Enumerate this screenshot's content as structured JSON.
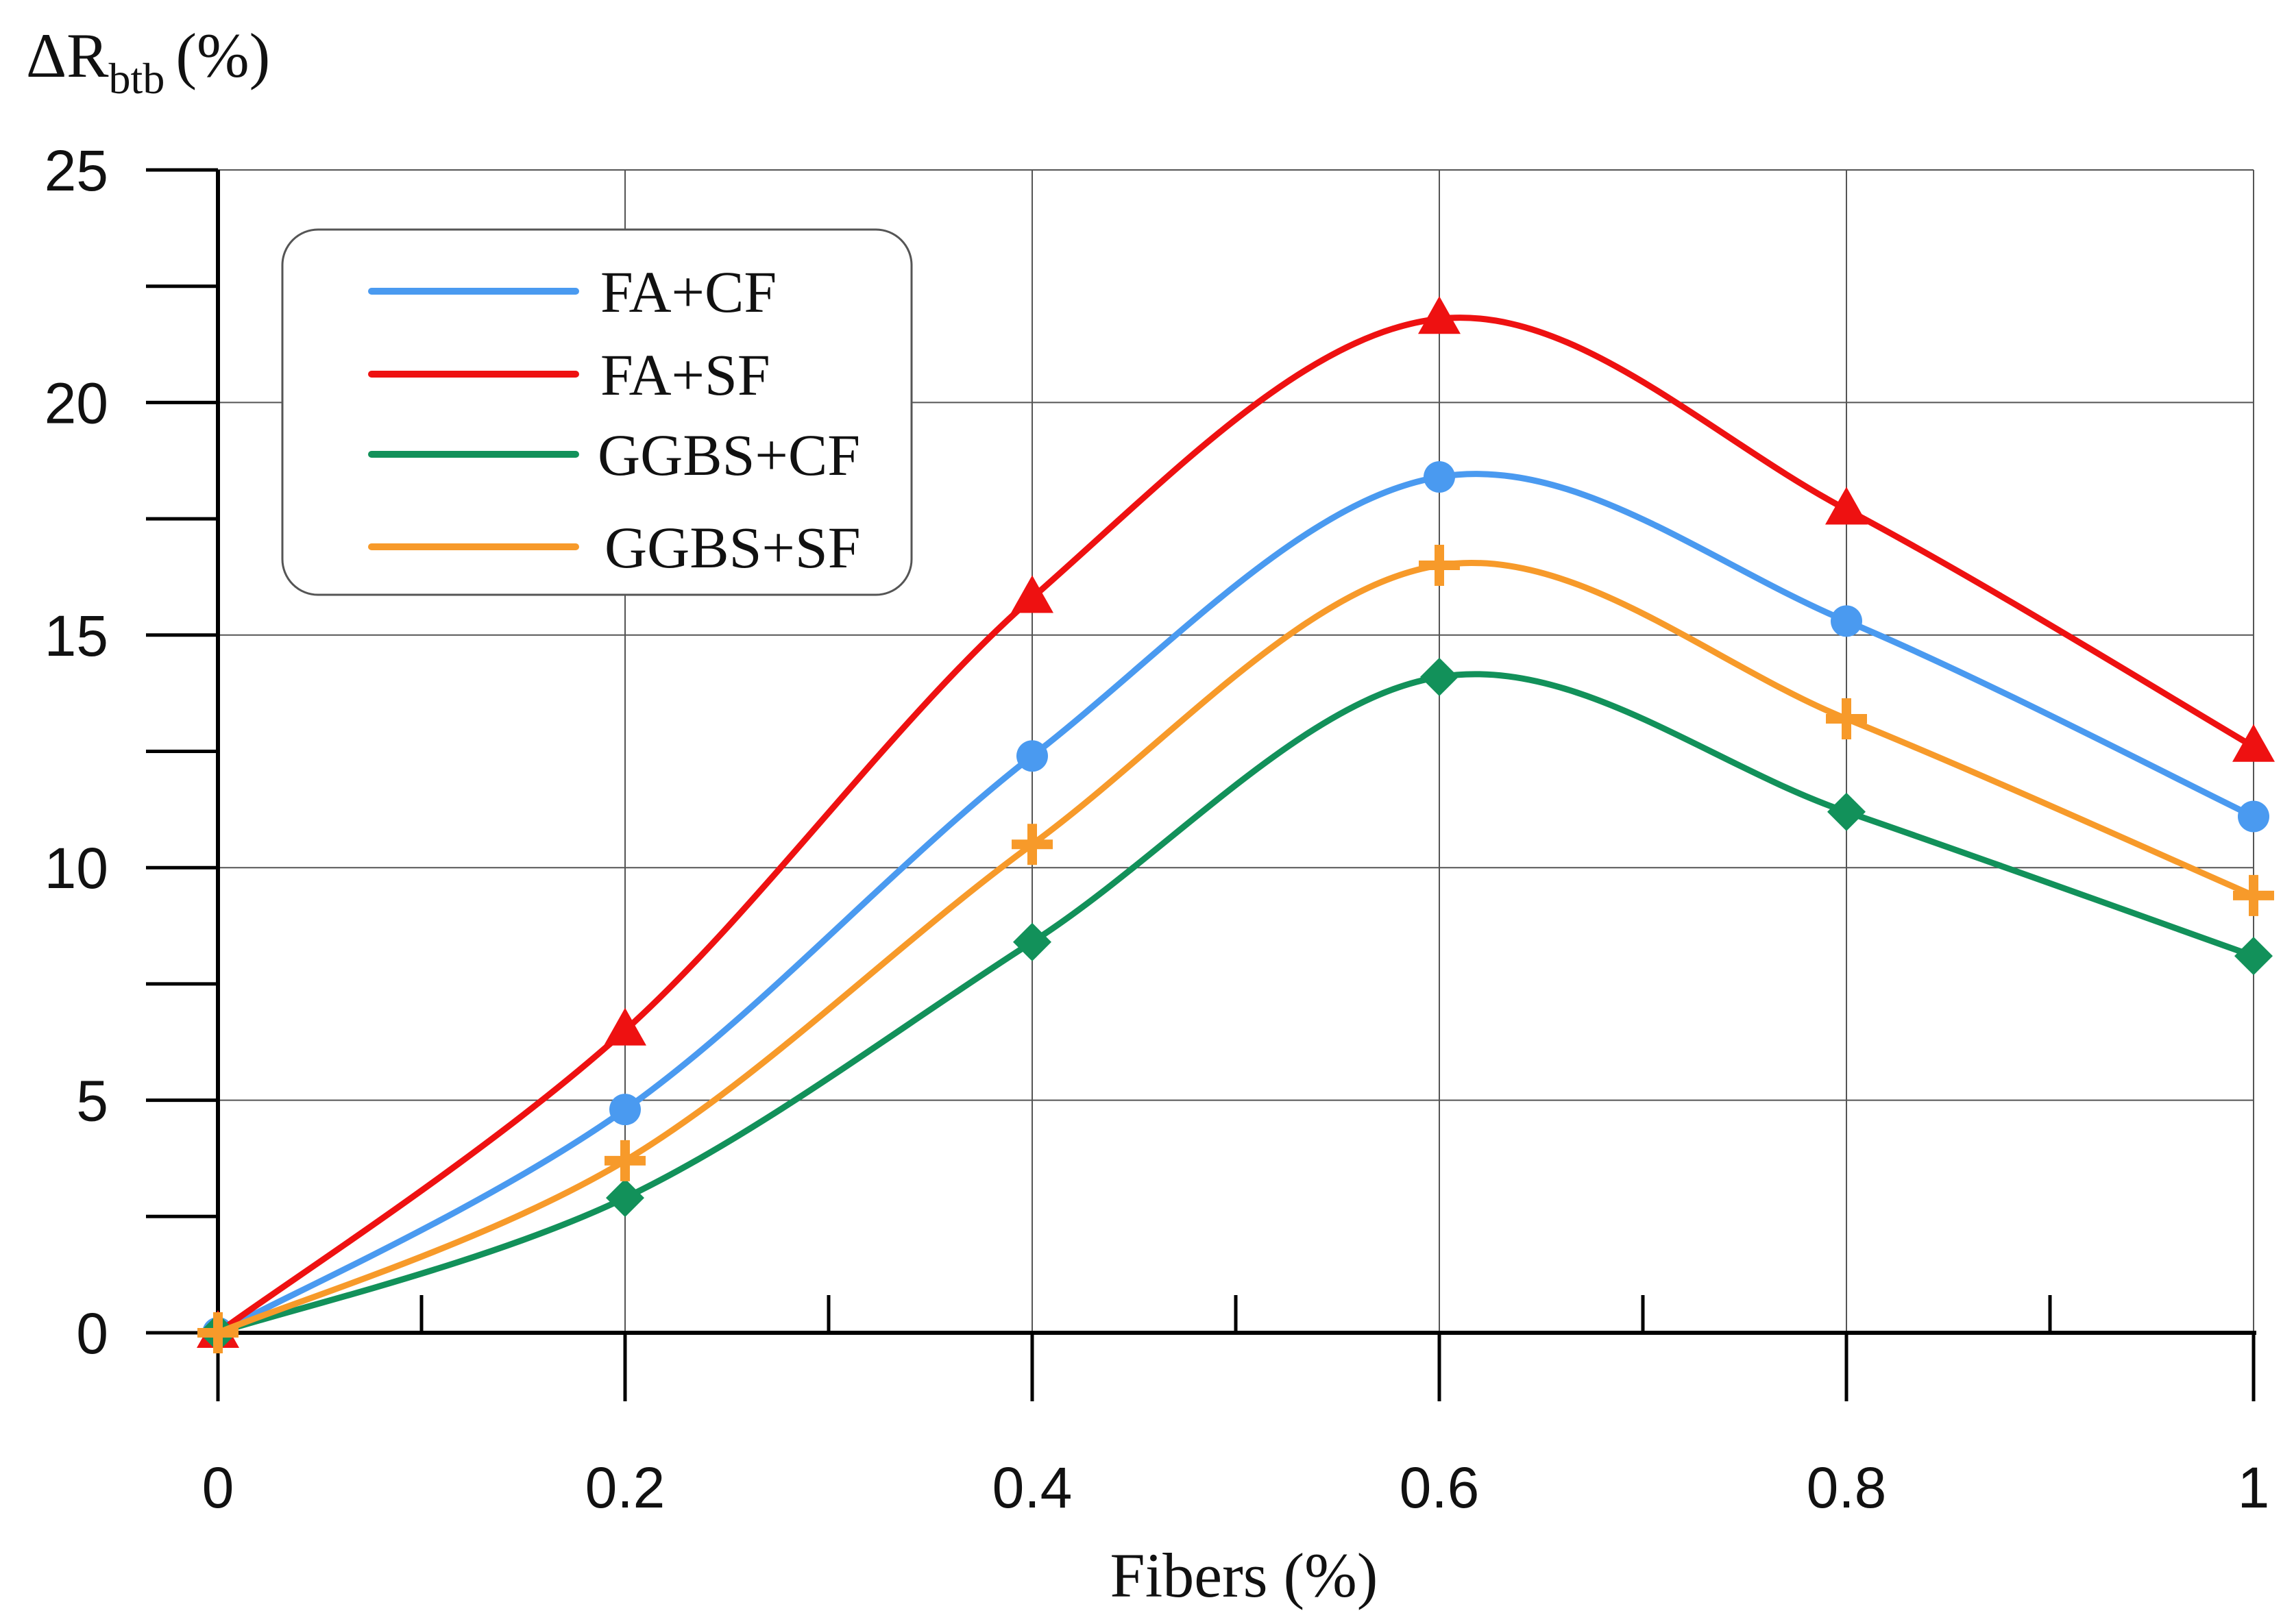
{
  "chart_data": {
    "type": "line",
    "title": "",
    "ylabel": {
      "symbol": "ΔR",
      "subscript": "btb",
      "unit": "(%)"
    },
    "xlabel": "Fibers (%)",
    "x": [
      0,
      0.2,
      0.4,
      0.6,
      0.8,
      1
    ],
    "x_tick_labels": [
      "0",
      "0.2",
      "0.4",
      "0.6",
      "0.8",
      "1"
    ],
    "y_tick_labels": [
      "0",
      "5",
      "10",
      "15",
      "20",
      "25"
    ],
    "xlim": [
      0,
      1
    ],
    "ylim": [
      0,
      25
    ],
    "x_major_step": 0.2,
    "x_minor_step": 0.1,
    "y_major_step": 5,
    "y_minor_step": 2.5,
    "grid": true,
    "legend_position": "top-left",
    "series": [
      {
        "name": "FA+CF",
        "color": "#4a9af0",
        "marker": "circle",
        "values": [
          0,
          4.8,
          12.4,
          18.4,
          15.3,
          11.1
        ]
      },
      {
        "name": "FA+SF",
        "color": "#ee1111",
        "marker": "triangle",
        "values": [
          0,
          6.5,
          15.8,
          21.8,
          17.7,
          12.6
        ]
      },
      {
        "name": "GGBS+CF",
        "color": "#12915a",
        "marker": "diamond",
        "values": [
          0,
          2.9,
          8.4,
          14.1,
          11.2,
          8.1
        ]
      },
      {
        "name": "GGBS+SF",
        "color": "#f79a2a",
        "marker": "plus",
        "values": [
          0,
          3.7,
          10.5,
          16.5,
          13.2,
          9.4
        ]
      }
    ]
  }
}
